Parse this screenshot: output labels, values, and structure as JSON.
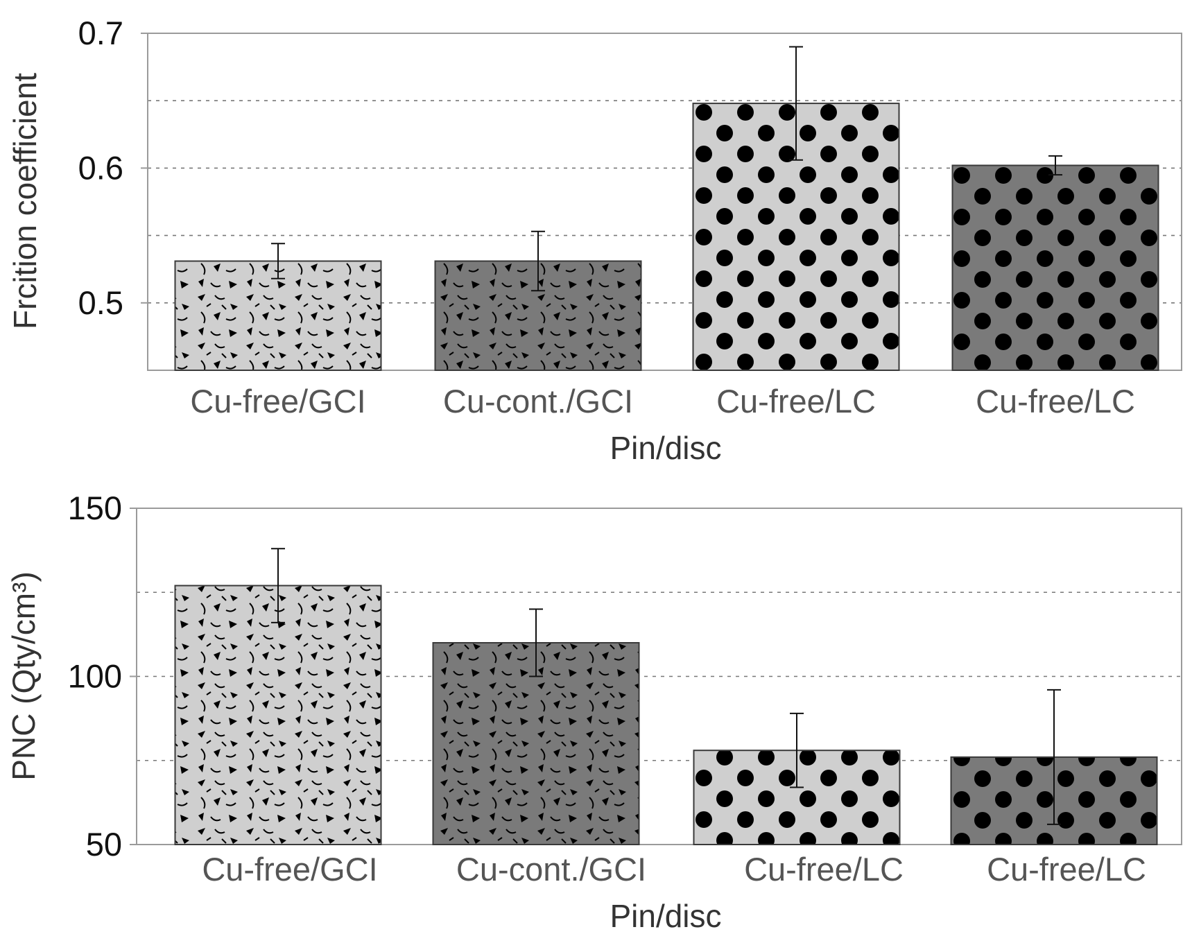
{
  "colors": {
    "light_fill": "#cfcfcf",
    "dark_fill": "#7a7a7a",
    "mark": "#000000",
    "axis": "#9a9a9a",
    "grid": "#777777",
    "category_text": "#555555",
    "tick_text": "#111111"
  },
  "chart_data": [
    {
      "type": "bar",
      "categories": [
        "Cu-free/GCI",
        "Cu-cont./GCI",
        "Cu-free/LC",
        "Cu-free/LC"
      ],
      "values": [
        0.531,
        0.531,
        0.648,
        0.602
      ],
      "errors": [
        0.013,
        0.022,
        0.042,
        0.007
      ],
      "fills": [
        "light",
        "dark",
        "light",
        "dark"
      ],
      "patterns": [
        "flakes",
        "flakes",
        "dots",
        "dots"
      ],
      "xlabel": "Pin/disc",
      "ylabel": "Frcition coefficient",
      "ylim": [
        0.45,
        0.7
      ],
      "yticks": [
        0.5,
        0.6,
        0.7
      ],
      "ytick_labels": [
        "0.5",
        "0.6",
        "0.7"
      ],
      "gridlines": [
        0.5,
        0.55,
        0.6,
        0.65
      ],
      "grid": "dotted horizontal"
    },
    {
      "type": "bar",
      "categories": [
        "Cu-free/GCI",
        "Cu-cont./GCI",
        "Cu-free/LC",
        "Cu-free/LC"
      ],
      "values": [
        127,
        110,
        78,
        76
      ],
      "errors": [
        11,
        10,
        11,
        20
      ],
      "fills": [
        "light",
        "dark",
        "light",
        "dark"
      ],
      "patterns": [
        "flakes",
        "flakes",
        "dots",
        "dots"
      ],
      "xlabel": "Pin/disc",
      "ylabel": "PNC (Qty/cm³)",
      "ylim": [
        50,
        150
      ],
      "yticks": [
        50,
        100,
        150
      ],
      "ytick_labels": [
        "50",
        "100",
        "150"
      ],
      "gridlines": [
        75,
        100,
        125
      ],
      "grid": "dotted horizontal"
    }
  ]
}
